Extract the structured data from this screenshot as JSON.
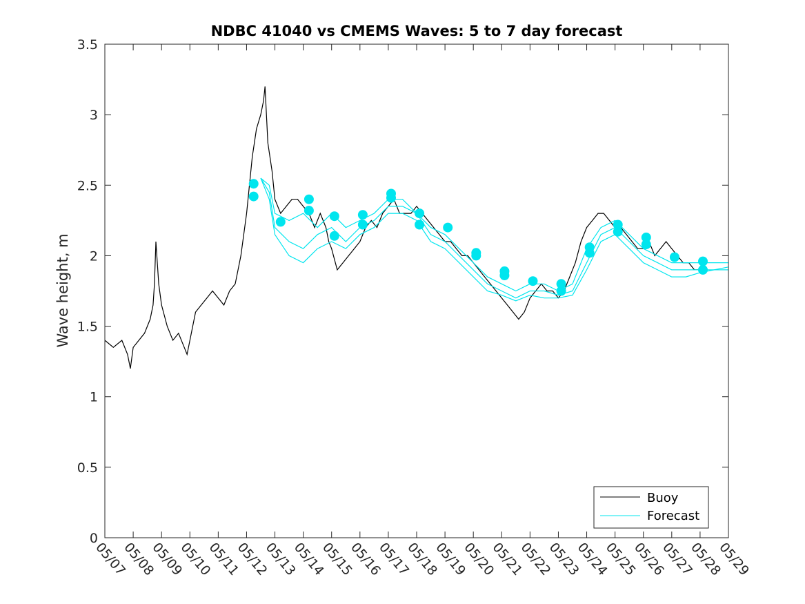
{
  "chart_data": {
    "type": "line",
    "title": "NDBC 41040 vs CMEMS Waves: 5 to 7 day forecast",
    "xlabel": "",
    "ylabel": "Wave height, m",
    "x_range_days": [
      0,
      22
    ],
    "xticks": [
      "05/07",
      "05/08",
      "05/09",
      "05/10",
      "05/11",
      "05/12",
      "05/13",
      "05/14",
      "05/15",
      "05/16",
      "05/17",
      "05/18",
      "05/19",
      "05/20",
      "05/21",
      "05/22",
      "05/23",
      "05/24",
      "05/25",
      "05/26",
      "05/27",
      "05/28",
      "05/29"
    ],
    "ylim": [
      0,
      3.5
    ],
    "yticks": [
      "0",
      "0.5",
      "1",
      "1.5",
      "2",
      "2.5",
      "3",
      "3.5"
    ],
    "grid": false,
    "legend_position": "bottom-right",
    "colors": {
      "buoy": "#000000",
      "forecast": "#00e5ee"
    },
    "series": [
      {
        "name": "Buoy",
        "style": "line",
        "points": [
          [
            0.0,
            1.4
          ],
          [
            0.3,
            1.35
          ],
          [
            0.6,
            1.4
          ],
          [
            0.8,
            1.3
          ],
          [
            0.9,
            1.2
          ],
          [
            1.0,
            1.35
          ],
          [
            1.2,
            1.4
          ],
          [
            1.4,
            1.45
          ],
          [
            1.6,
            1.55
          ],
          [
            1.7,
            1.65
          ],
          [
            1.75,
            1.8
          ],
          [
            1.8,
            2.1
          ],
          [
            1.9,
            1.8
          ],
          [
            2.0,
            1.65
          ],
          [
            2.2,
            1.5
          ],
          [
            2.4,
            1.4
          ],
          [
            2.6,
            1.45
          ],
          [
            2.8,
            1.35
          ],
          [
            2.9,
            1.3
          ],
          [
            3.0,
            1.4
          ],
          [
            3.2,
            1.6
          ],
          [
            3.4,
            1.65
          ],
          [
            3.6,
            1.7
          ],
          [
            3.8,
            1.75
          ],
          [
            4.0,
            1.7
          ],
          [
            4.2,
            1.65
          ],
          [
            4.4,
            1.75
          ],
          [
            4.6,
            1.8
          ],
          [
            4.8,
            2.0
          ],
          [
            5.0,
            2.3
          ],
          [
            5.2,
            2.7
          ],
          [
            5.35,
            2.9
          ],
          [
            5.5,
            3.0
          ],
          [
            5.6,
            3.1
          ],
          [
            5.65,
            3.2
          ],
          [
            5.75,
            2.8
          ],
          [
            5.9,
            2.6
          ],
          [
            6.0,
            2.4
          ],
          [
            6.2,
            2.3
          ],
          [
            6.4,
            2.35
          ],
          [
            6.6,
            2.4
          ],
          [
            6.8,
            2.4
          ],
          [
            7.0,
            2.35
          ],
          [
            7.2,
            2.3
          ],
          [
            7.4,
            2.2
          ],
          [
            7.6,
            2.3
          ],
          [
            7.8,
            2.2
          ],
          [
            7.9,
            2.1
          ],
          [
            8.0,
            2.05
          ],
          [
            8.2,
            1.9
          ],
          [
            8.4,
            1.95
          ],
          [
            8.6,
            2.0
          ],
          [
            8.8,
            2.05
          ],
          [
            9.0,
            2.1
          ],
          [
            9.2,
            2.2
          ],
          [
            9.4,
            2.25
          ],
          [
            9.6,
            2.2
          ],
          [
            9.8,
            2.3
          ],
          [
            10.0,
            2.35
          ],
          [
            10.2,
            2.4
          ],
          [
            10.4,
            2.3
          ],
          [
            10.6,
            2.3
          ],
          [
            10.8,
            2.3
          ],
          [
            11.0,
            2.35
          ],
          [
            11.2,
            2.3
          ],
          [
            11.4,
            2.25
          ],
          [
            11.6,
            2.2
          ],
          [
            11.8,
            2.15
          ],
          [
            12.0,
            2.1
          ],
          [
            12.2,
            2.1
          ],
          [
            12.4,
            2.05
          ],
          [
            12.6,
            2.0
          ],
          [
            12.8,
            2.0
          ],
          [
            13.0,
            1.95
          ],
          [
            13.2,
            1.9
          ],
          [
            13.4,
            1.85
          ],
          [
            13.6,
            1.8
          ],
          [
            13.8,
            1.75
          ],
          [
            14.0,
            1.7
          ],
          [
            14.2,
            1.65
          ],
          [
            14.4,
            1.6
          ],
          [
            14.6,
            1.55
          ],
          [
            14.8,
            1.6
          ],
          [
            15.0,
            1.7
          ],
          [
            15.2,
            1.75
          ],
          [
            15.4,
            1.8
          ],
          [
            15.6,
            1.75
          ],
          [
            15.8,
            1.75
          ],
          [
            16.0,
            1.7
          ],
          [
            16.2,
            1.75
          ],
          [
            16.4,
            1.85
          ],
          [
            16.6,
            1.95
          ],
          [
            16.8,
            2.1
          ],
          [
            17.0,
            2.2
          ],
          [
            17.2,
            2.25
          ],
          [
            17.4,
            2.3
          ],
          [
            17.6,
            2.3
          ],
          [
            17.8,
            2.25
          ],
          [
            18.0,
            2.2
          ],
          [
            18.2,
            2.2
          ],
          [
            18.4,
            2.15
          ],
          [
            18.6,
            2.1
          ],
          [
            18.8,
            2.05
          ],
          [
            19.0,
            2.05
          ],
          [
            19.2,
            2.1
          ],
          [
            19.4,
            2.0
          ],
          [
            19.6,
            2.05
          ],
          [
            19.8,
            2.1
          ],
          [
            20.0,
            2.05
          ],
          [
            20.2,
            2.0
          ],
          [
            20.4,
            1.95
          ],
          [
            20.6,
            1.95
          ],
          [
            20.8,
            1.9
          ],
          [
            21.0,
            1.9
          ],
          [
            21.2,
            1.95
          ]
        ]
      },
      {
        "name": "Forecast",
        "style": "line",
        "ensemble": [
          [
            [
              5.5,
              2.55
            ],
            [
              5.8,
              2.5
            ],
            [
              6.0,
              2.3
            ],
            [
              6.5,
              2.25
            ],
            [
              7.0,
              2.3
            ],
            [
              7.5,
              2.2
            ],
            [
              8.0,
              2.3
            ],
            [
              8.5,
              2.2
            ],
            [
              9.0,
              2.25
            ],
            [
              9.5,
              2.3
            ],
            [
              10.0,
              2.4
            ],
            [
              10.5,
              2.4
            ],
            [
              11.0,
              2.3
            ],
            [
              11.5,
              2.2
            ],
            [
              12.0,
              2.15
            ],
            [
              12.5,
              2.05
            ],
            [
              13.0,
              1.95
            ],
            [
              13.5,
              1.85
            ],
            [
              14.0,
              1.8
            ],
            [
              14.5,
              1.75
            ],
            [
              15.0,
              1.8
            ],
            [
              15.5,
              1.8
            ],
            [
              16.0,
              1.75
            ],
            [
              16.5,
              1.8
            ],
            [
              17.0,
              2.05
            ],
            [
              17.5,
              2.2
            ],
            [
              18.0,
              2.25
            ],
            [
              18.5,
              2.15
            ],
            [
              19.0,
              2.05
            ],
            [
              19.5,
              2.0
            ],
            [
              20.0,
              1.95
            ],
            [
              20.5,
              1.95
            ],
            [
              21.0,
              1.95
            ],
            [
              21.5,
              1.95
            ],
            [
              22.0,
              1.95
            ]
          ],
          [
            [
              5.5,
              2.55
            ],
            [
              5.8,
              2.45
            ],
            [
              6.0,
              2.2
            ],
            [
              6.5,
              2.1
            ],
            [
              7.0,
              2.05
            ],
            [
              7.5,
              2.15
            ],
            [
              8.0,
              2.2
            ],
            [
              8.5,
              2.1
            ],
            [
              9.0,
              2.2
            ],
            [
              9.5,
              2.25
            ],
            [
              10.0,
              2.35
            ],
            [
              10.5,
              2.35
            ],
            [
              11.0,
              2.3
            ],
            [
              11.5,
              2.15
            ],
            [
              12.0,
              2.1
            ],
            [
              12.5,
              2.0
            ],
            [
              13.0,
              1.9
            ],
            [
              13.5,
              1.8
            ],
            [
              14.0,
              1.75
            ],
            [
              14.5,
              1.7
            ],
            [
              15.0,
              1.75
            ],
            [
              15.5,
              1.75
            ],
            [
              16.0,
              1.72
            ],
            [
              16.5,
              1.75
            ],
            [
              17.0,
              1.95
            ],
            [
              17.5,
              2.15
            ],
            [
              18.0,
              2.2
            ],
            [
              18.5,
              2.1
            ],
            [
              19.0,
              2.0
            ],
            [
              19.5,
              1.95
            ],
            [
              20.0,
              1.9
            ],
            [
              20.5,
              1.9
            ],
            [
              21.0,
              1.9
            ],
            [
              21.5,
              1.9
            ],
            [
              22.0,
              1.9
            ]
          ],
          [
            [
              5.5,
              2.55
            ],
            [
              5.8,
              2.4
            ],
            [
              6.0,
              2.15
            ],
            [
              6.5,
              2.0
            ],
            [
              7.0,
              1.95
            ],
            [
              7.5,
              2.05
            ],
            [
              8.0,
              2.1
            ],
            [
              8.5,
              2.05
            ],
            [
              9.0,
              2.15
            ],
            [
              9.5,
              2.2
            ],
            [
              10.0,
              2.3
            ],
            [
              10.5,
              2.3
            ],
            [
              11.0,
              2.25
            ],
            [
              11.5,
              2.1
            ],
            [
              12.0,
              2.05
            ],
            [
              12.5,
              1.95
            ],
            [
              13.0,
              1.85
            ],
            [
              13.5,
              1.75
            ],
            [
              14.0,
              1.72
            ],
            [
              14.5,
              1.68
            ],
            [
              15.0,
              1.72
            ],
            [
              15.5,
              1.7
            ],
            [
              16.0,
              1.7
            ],
            [
              16.5,
              1.72
            ],
            [
              17.0,
              1.9
            ],
            [
              17.5,
              2.1
            ],
            [
              18.0,
              2.15
            ],
            [
              18.5,
              2.05
            ],
            [
              19.0,
              1.95
            ],
            [
              19.5,
              1.9
            ],
            [
              20.0,
              1.85
            ],
            [
              20.5,
              1.85
            ],
            [
              21.0,
              1.88
            ],
            [
              21.5,
              1.9
            ],
            [
              22.0,
              1.92
            ]
          ]
        ],
        "markers": [
          [
            5.25,
            2.51
          ],
          [
            5.25,
            2.42
          ],
          [
            6.2,
            2.24
          ],
          [
            7.2,
            2.4
          ],
          [
            7.2,
            2.32
          ],
          [
            8.1,
            2.28
          ],
          [
            8.1,
            2.14
          ],
          [
            9.1,
            2.29
          ],
          [
            9.1,
            2.22
          ],
          [
            10.1,
            2.44
          ],
          [
            10.1,
            2.41
          ],
          [
            11.1,
            2.3
          ],
          [
            11.1,
            2.22
          ],
          [
            12.1,
            2.2
          ],
          [
            13.1,
            2.02
          ],
          [
            13.1,
            2.0
          ],
          [
            14.1,
            1.89
          ],
          [
            14.1,
            1.86
          ],
          [
            15.1,
            1.82
          ],
          [
            16.1,
            1.8
          ],
          [
            16.1,
            1.75
          ],
          [
            17.1,
            2.06
          ],
          [
            17.1,
            2.02
          ],
          [
            18.1,
            2.22
          ],
          [
            18.1,
            2.17
          ],
          [
            19.1,
            2.13
          ],
          [
            19.1,
            2.08
          ],
          [
            20.1,
            1.99
          ],
          [
            21.1,
            1.96
          ],
          [
            21.1,
            1.9
          ]
        ]
      }
    ]
  }
}
